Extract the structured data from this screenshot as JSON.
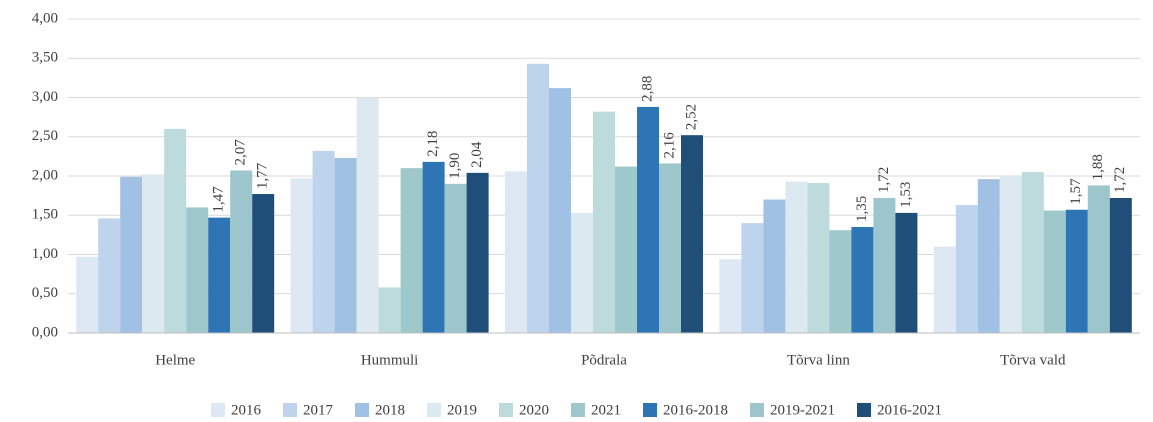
{
  "chart_data": {
    "type": "bar",
    "categories": [
      "Helme",
      "Hummuli",
      "Põdrala",
      "Tõrva linn",
      "Tõrva vald"
    ],
    "series": [
      {
        "name": "2016",
        "color": "#dde8f4",
        "values": [
          0.97,
          1.97,
          2.06,
          0.94,
          1.1
        ]
      },
      {
        "name": "2017",
        "color": "#bed4ed",
        "values": [
          1.46,
          2.32,
          3.43,
          1.4,
          1.63
        ]
      },
      {
        "name": "2018",
        "color": "#a0c1e3",
        "values": [
          1.99,
          2.23,
          3.12,
          1.7,
          1.96
        ]
      },
      {
        "name": "2019",
        "color": "#dce9f0",
        "values": [
          2.02,
          3.0,
          1.53,
          1.93,
          2.01
        ]
      },
      {
        "name": "2020",
        "color": "#bddadc",
        "values": [
          2.6,
          0.58,
          2.82,
          1.91,
          2.05
        ]
      },
      {
        "name": "2021",
        "color": "#9fc8cd",
        "values": [
          1.6,
          2.1,
          2.12,
          1.31,
          1.56
        ]
      },
      {
        "name": "2016-2018",
        "color": "#2e75b6",
        "values": [
          1.47,
          2.18,
          2.88,
          1.35,
          1.57
        ],
        "value_labels": [
          "1,47",
          "2,18",
          "2,88",
          "1,35",
          "1,57"
        ]
      },
      {
        "name": "2019-2021",
        "color": "#9cc6cc",
        "values": [
          2.07,
          1.9,
          2.16,
          1.72,
          1.88
        ],
        "value_labels": [
          "2,07",
          "1,90",
          "2,16",
          "1,72",
          "1,88"
        ]
      },
      {
        "name": "2016-2021",
        "color": "#1f4e79",
        "values": [
          1.77,
          2.04,
          2.52,
          1.53,
          1.72
        ],
        "value_labels": [
          "1,77",
          "2,04",
          "2,52",
          "1,53",
          "1,72"
        ]
      }
    ],
    "ylim": [
      0,
      4
    ],
    "yticks": [
      {
        "value": 0,
        "label": "0,00"
      },
      {
        "value": 0.5,
        "label": "0,50"
      },
      {
        "value": 1,
        "label": "1,00"
      },
      {
        "value": 1.5,
        "label": "1,50"
      },
      {
        "value": 2,
        "label": "2,00"
      },
      {
        "value": 2.5,
        "label": "2,50"
      },
      {
        "value": 3,
        "label": "3,00"
      },
      {
        "value": 3.5,
        "label": "3,50"
      },
      {
        "value": 4,
        "label": "4,00"
      }
    ],
    "grid": true,
    "legend": "bottom"
  }
}
